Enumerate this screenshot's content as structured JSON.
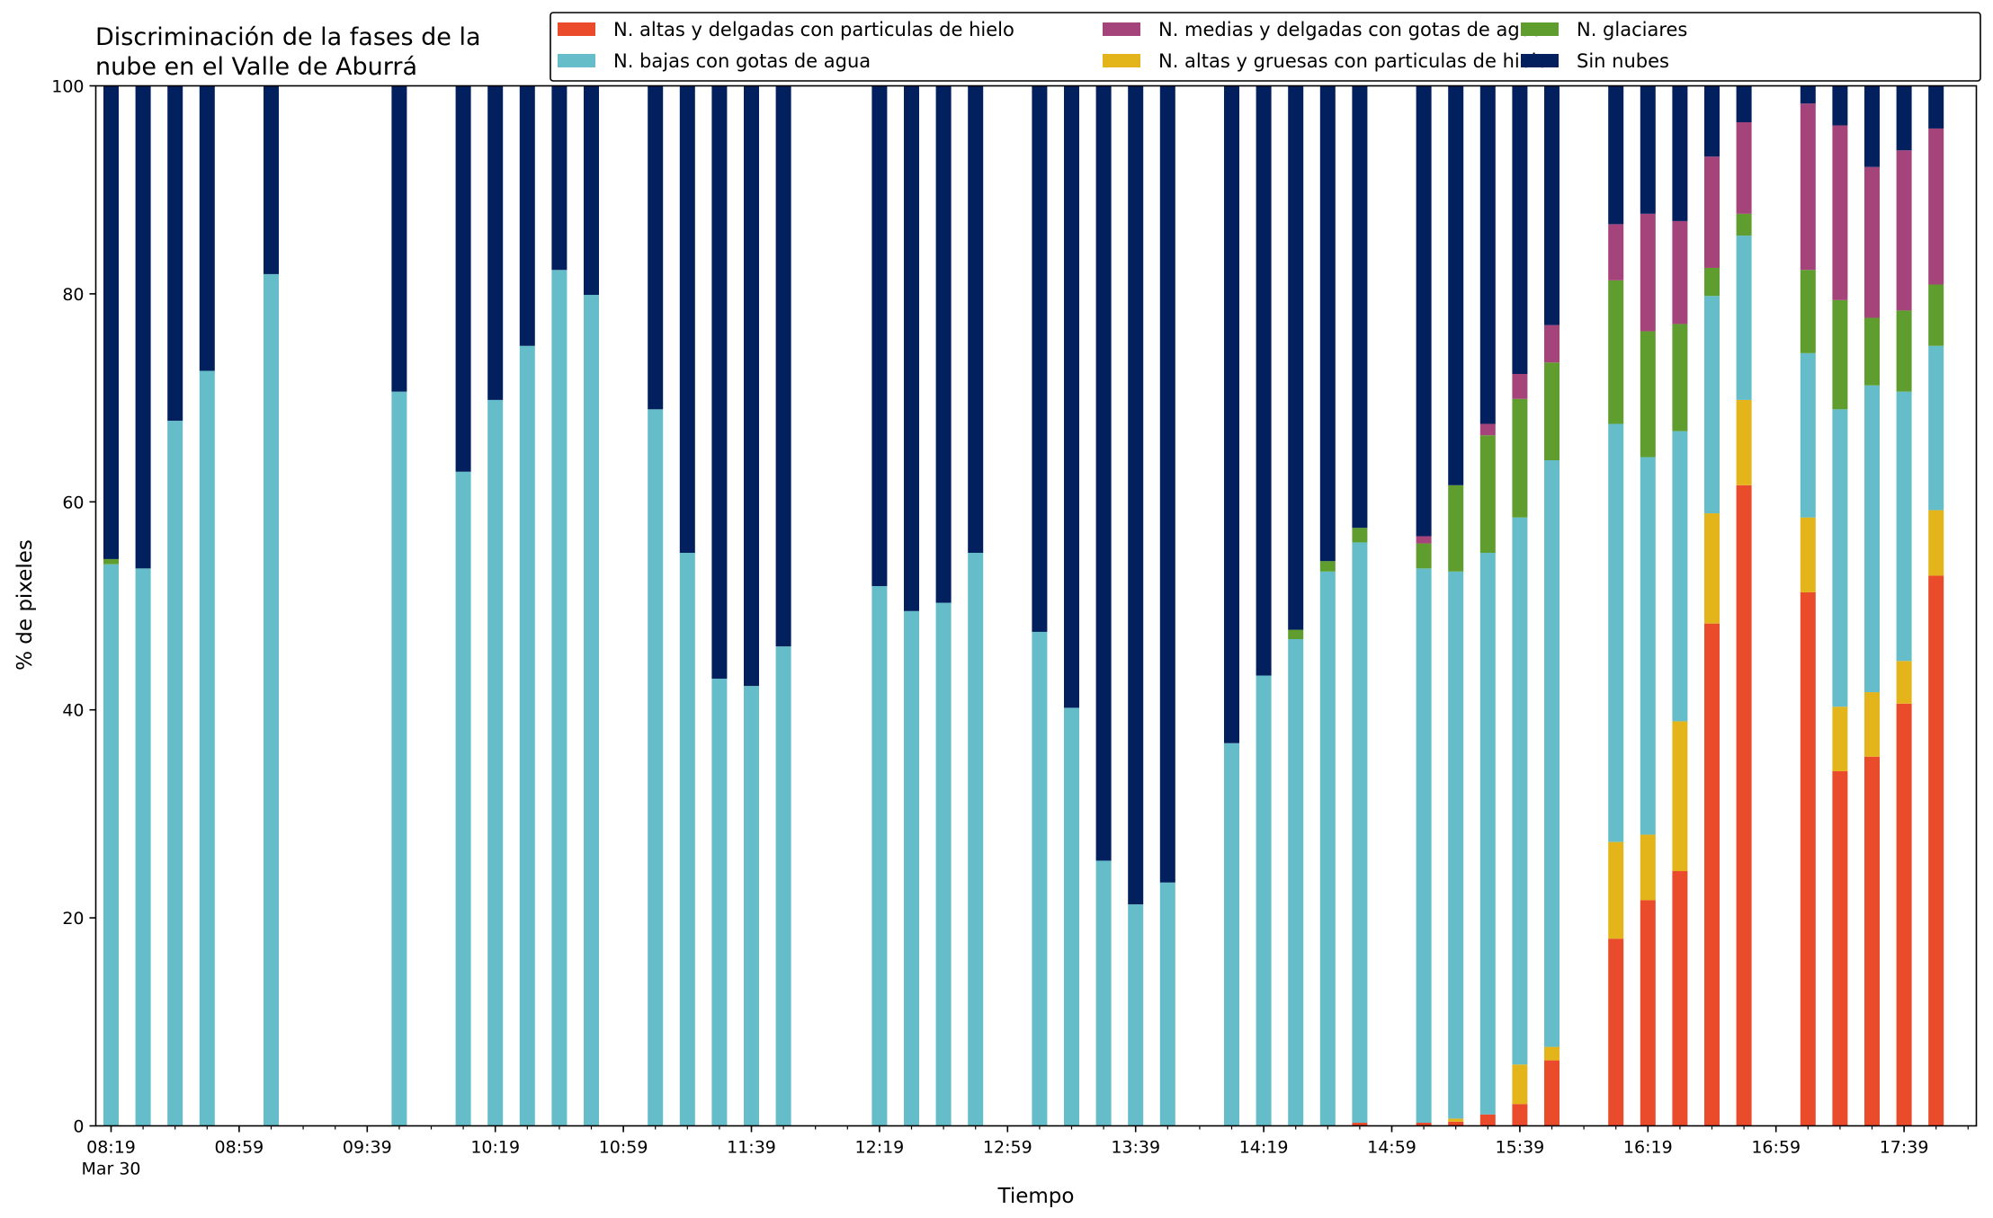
{
  "chart_data": {
    "type": "bar",
    "stacked": true,
    "title": "Discriminación de la fases de la nube en el Valle de Aburrá",
    "title_lines": [
      "Discriminación de la fases de la",
      "nube en el Valle de Aburrá"
    ],
    "xlabel": "Tiempo",
    "ylabel": "% de pixeles",
    "ylim": [
      0,
      100
    ],
    "yticks": [
      "0",
      "20",
      "40",
      "60",
      "80",
      "100"
    ],
    "grid": false,
    "legend_position": "top-right",
    "x_slot_minutes": 10,
    "x_start": "08:19",
    "x_slots_total": 59,
    "xticks": [
      {
        "slot": 0,
        "label": "08:19",
        "sublabel": "Mar 30"
      },
      {
        "slot": 4,
        "label": "08:59"
      },
      {
        "slot": 8,
        "label": "09:39"
      },
      {
        "slot": 12,
        "label": "10:19"
      },
      {
        "slot": 16,
        "label": "10:59"
      },
      {
        "slot": 20,
        "label": "11:39"
      },
      {
        "slot": 24,
        "label": "12:19"
      },
      {
        "slot": 28,
        "label": "12:59"
      },
      {
        "slot": 32,
        "label": "13:39"
      },
      {
        "slot": 36,
        "label": "14:19"
      },
      {
        "slot": 40,
        "label": "14:59"
      },
      {
        "slot": 44,
        "label": "15:39"
      },
      {
        "slot": 48,
        "label": "16:19"
      },
      {
        "slot": 52,
        "label": "16:59"
      },
      {
        "slot": 56,
        "label": "17:39"
      }
    ],
    "series": [
      {
        "name": "N. altas y delgadas con particulas de hielo",
        "color": "#ea4b2b"
      },
      {
        "name": "N. altas y gruesas con particulas de hielo",
        "color": "#e4b51b"
      },
      {
        "name": "N. bajas con gotas de agua",
        "color": "#65bdc9"
      },
      {
        "name": "N. glaciares",
        "color": "#5f9e2e"
      },
      {
        "name": "N. medias y delgadas con gotas de agua",
        "color": "#a5447b"
      },
      {
        "name": "Sin nubes",
        "color": "#021f5e"
      }
    ],
    "legend_order": [
      0,
      2,
      4,
      1,
      3,
      5
    ],
    "bars": [
      {
        "slot": 0,
        "values": [
          0,
          0,
          54.0,
          0.5,
          0,
          45.5
        ]
      },
      {
        "slot": 1,
        "values": [
          0,
          0,
          53.6,
          0,
          0,
          46.4
        ]
      },
      {
        "slot": 2,
        "values": [
          0,
          0,
          67.8,
          0,
          0,
          32.2
        ]
      },
      {
        "slot": 3,
        "values": [
          0,
          0,
          72.6,
          0,
          0,
          27.4
        ]
      },
      {
        "slot": 5,
        "values": [
          0,
          0,
          81.9,
          0,
          0,
          18.1
        ]
      },
      {
        "slot": 9,
        "values": [
          0,
          0,
          70.6,
          0,
          0,
          29.4
        ]
      },
      {
        "slot": 11,
        "values": [
          0,
          0,
          62.9,
          0,
          0,
          37.1
        ]
      },
      {
        "slot": 12,
        "values": [
          0,
          0,
          69.8,
          0,
          0,
          30.2
        ]
      },
      {
        "slot": 13,
        "values": [
          0,
          0,
          75.0,
          0,
          0,
          25.0
        ]
      },
      {
        "slot": 14,
        "values": [
          0,
          0,
          82.3,
          0,
          0,
          17.7
        ]
      },
      {
        "slot": 15,
        "values": [
          0,
          0,
          79.9,
          0,
          0,
          20.1
        ]
      },
      {
        "slot": 17,
        "values": [
          0,
          0,
          68.9,
          0,
          0,
          31.1
        ]
      },
      {
        "slot": 18,
        "values": [
          0,
          0,
          55.1,
          0,
          0,
          44.9
        ]
      },
      {
        "slot": 19,
        "values": [
          0,
          0,
          43.0,
          0,
          0,
          57.0
        ]
      },
      {
        "slot": 20,
        "values": [
          0,
          0,
          42.3,
          0,
          0,
          57.7
        ]
      },
      {
        "slot": 21,
        "values": [
          0,
          0,
          46.1,
          0,
          0,
          53.9
        ]
      },
      {
        "slot": 24,
        "values": [
          0,
          0,
          51.9,
          0,
          0,
          48.1
        ]
      },
      {
        "slot": 25,
        "values": [
          0,
          0,
          49.5,
          0,
          0,
          50.5
        ]
      },
      {
        "slot": 26,
        "values": [
          0,
          0,
          50.3,
          0,
          0,
          49.7
        ]
      },
      {
        "slot": 27,
        "values": [
          0,
          0,
          55.1,
          0,
          0,
          44.9
        ]
      },
      {
        "slot": 29,
        "values": [
          0,
          0,
          47.5,
          0,
          0,
          52.5
        ]
      },
      {
        "slot": 30,
        "values": [
          0,
          0,
          40.2,
          0,
          0,
          59.8
        ]
      },
      {
        "slot": 31,
        "values": [
          0,
          0,
          25.5,
          0,
          0,
          74.5
        ]
      },
      {
        "slot": 32,
        "values": [
          0,
          0,
          21.3,
          0,
          0,
          78.7
        ]
      },
      {
        "slot": 33,
        "values": [
          0,
          0,
          23.4,
          0,
          0,
          76.6
        ]
      },
      {
        "slot": 35,
        "values": [
          0,
          0,
          36.8,
          0,
          0,
          63.2
        ]
      },
      {
        "slot": 36,
        "values": [
          0,
          0,
          43.3,
          0,
          0,
          56.7
        ]
      },
      {
        "slot": 37,
        "values": [
          0,
          0,
          46.8,
          0.9,
          0,
          52.3
        ]
      },
      {
        "slot": 38,
        "values": [
          0,
          0,
          53.3,
          1.0,
          0,
          45.7
        ]
      },
      {
        "slot": 39,
        "values": [
          0.3,
          0,
          55.8,
          1.4,
          0,
          42.5
        ]
      },
      {
        "slot": 41,
        "values": [
          0.3,
          0,
          53.3,
          2.4,
          0.7,
          43.3
        ]
      },
      {
        "slot": 42,
        "values": [
          0.4,
          0.3,
          52.6,
          8.3,
          0,
          38.4
        ]
      },
      {
        "slot": 43,
        "values": [
          1.1,
          0,
          54.0,
          11.3,
          1.1,
          32.5
        ]
      },
      {
        "slot": 44,
        "values": [
          2.1,
          3.8,
          52.6,
          11.4,
          2.4,
          27.7
        ]
      },
      {
        "slot": 45,
        "values": [
          6.3,
          1.3,
          56.4,
          9.4,
          3.6,
          23.0
        ]
      },
      {
        "slot": 47,
        "values": [
          18.0,
          9.3,
          40.2,
          13.8,
          5.4,
          13.3
        ]
      },
      {
        "slot": 48,
        "values": [
          21.7,
          6.3,
          36.3,
          12.1,
          11.3,
          12.3
        ]
      },
      {
        "slot": 49,
        "values": [
          24.5,
          14.4,
          27.9,
          10.3,
          9.9,
          13.0
        ]
      },
      {
        "slot": 50,
        "values": [
          48.3,
          10.6,
          20.9,
          2.7,
          10.7,
          6.8
        ]
      },
      {
        "slot": 51,
        "values": [
          61.6,
          8.2,
          15.8,
          2.1,
          8.8,
          3.5
        ]
      },
      {
        "slot": 53,
        "values": [
          51.3,
          7.2,
          15.8,
          8.0,
          16.0,
          1.7
        ]
      },
      {
        "slot": 54,
        "values": [
          34.1,
          6.2,
          28.6,
          10.5,
          16.8,
          3.8
        ]
      },
      {
        "slot": 55,
        "values": [
          35.5,
          6.2,
          29.5,
          6.5,
          14.5,
          7.8
        ]
      },
      {
        "slot": 56,
        "values": [
          40.6,
          4.1,
          25.9,
          7.8,
          15.4,
          6.2
        ]
      },
      {
        "slot": 57,
        "values": [
          52.9,
          6.3,
          15.8,
          5.9,
          15.0,
          4.1
        ]
      }
    ]
  }
}
